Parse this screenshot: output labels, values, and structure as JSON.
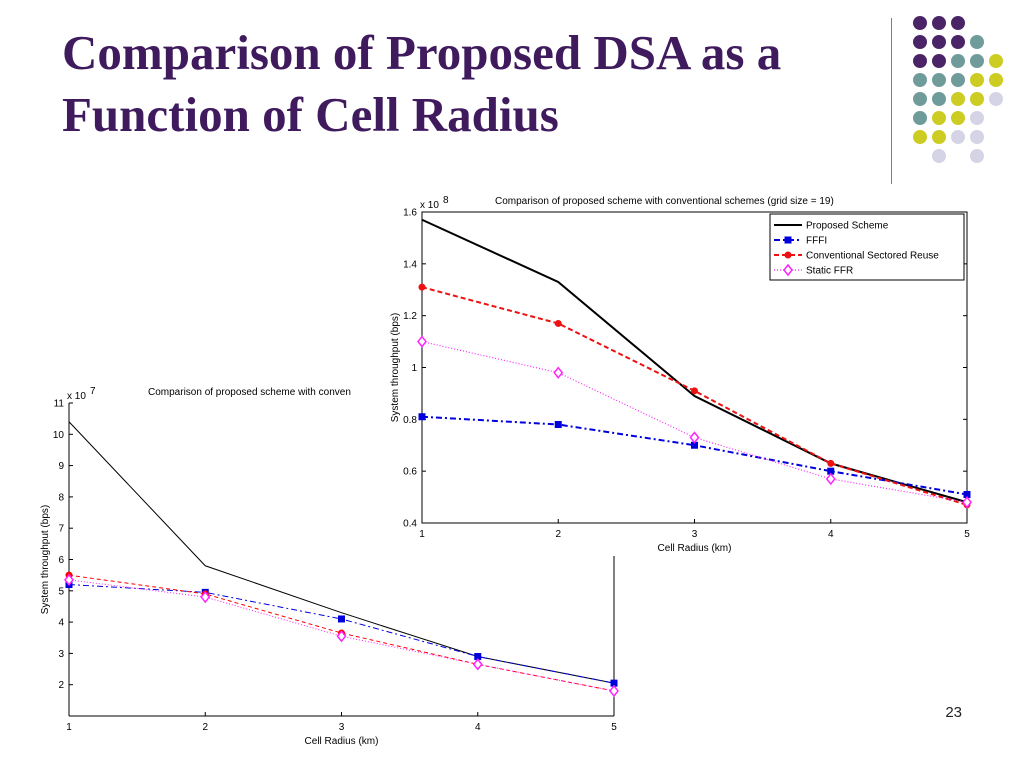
{
  "slide": {
    "title": "Comparison of Proposed DSA as a Function of Cell Radius",
    "page_number": "23"
  },
  "decoration": {
    "dot_colors": {
      "purple": "#4a2466",
      "teal": "#6f9c9a",
      "yellow": "#cccc22",
      "lavender": "#d4d4e6"
    },
    "rule_color": "#7f7f7f"
  },
  "chart_data": [
    {
      "type": "line",
      "title": "Comparison of proposed scheme with conven",
      "xlabel": "Cell Radius (km)",
      "ylabel": "System throughput (bps)",
      "y_exponent_label": "x 10",
      "y_exponent": "7",
      "xlim": [
        1,
        5
      ],
      "ylim": [
        1,
        11
      ],
      "x_ticks": [
        "1",
        "2",
        "3",
        "4",
        "5"
      ],
      "y_ticks": [
        "2",
        "3",
        "4",
        "5",
        "6",
        "7",
        "8",
        "9",
        "10",
        "11"
      ],
      "y_tick_values": [
        2,
        3,
        4,
        5,
        6,
        7,
        8,
        9,
        10,
        11
      ],
      "legend": "none",
      "grid": false,
      "x": [
        1,
        2,
        3,
        4,
        5
      ],
      "series": [
        {
          "color": "#000000",
          "dash": "",
          "marker": "none",
          "width": 1,
          "values": [
            10.4,
            5.8,
            4.3,
            2.9,
            2.05
          ]
        },
        {
          "color": "#0000dd",
          "dash": "6 3 2 3",
          "marker": "square",
          "width": 1,
          "values": [
            5.2,
            4.95,
            4.1,
            2.9,
            2.05
          ]
        },
        {
          "color": "#ff0000",
          "dash": "4 3",
          "marker": "circle",
          "width": 1,
          "values": [
            5.5,
            4.9,
            3.65,
            2.65,
            1.8
          ]
        },
        {
          "color": "#ff22ff",
          "dash": "1 2",
          "marker": "diamond",
          "width": 1,
          "values": [
            5.35,
            4.8,
            3.55,
            2.65,
            1.8
          ]
        }
      ]
    },
    {
      "type": "line",
      "title": "Comparison of proposed scheme with conventional schemes (grid size = 19)",
      "xlabel": "Cell Radius (km)",
      "ylabel": "System throughput (bps)",
      "y_exponent_label": "x 10",
      "y_exponent": "8",
      "xlim": [
        1,
        5
      ],
      "ylim": [
        0.4,
        1.6
      ],
      "x_ticks": [
        "1",
        "2",
        "3",
        "4",
        "5"
      ],
      "y_ticks": [
        "0.4",
        "0.6",
        "0.8",
        "1",
        "1.2",
        "1.4",
        "1.6"
      ],
      "y_tick_values": [
        0.4,
        0.6,
        0.8,
        1.0,
        1.2,
        1.4,
        1.6
      ],
      "legend": "top-right",
      "grid": false,
      "x": [
        1,
        2,
        3,
        4,
        5
      ],
      "series": [
        {
          "name": "Proposed Scheme",
          "color": "#000000",
          "dash": "",
          "marker": "none",
          "width": 2,
          "values": [
            1.57,
            1.33,
            0.89,
            0.63,
            0.48
          ]
        },
        {
          "name": "FFFI",
          "color": "#0000dd",
          "dash": "6 3 2 3",
          "marker": "square",
          "width": 2,
          "values": [
            0.81,
            0.78,
            0.7,
            0.6,
            0.51
          ]
        },
        {
          "name": "Conventional Sectored Reuse",
          "color": "#ee1111",
          "dash": "5 3",
          "marker": "circle",
          "width": 2,
          "values": [
            1.31,
            1.17,
            0.91,
            0.63,
            0.47
          ]
        },
        {
          "name": "Static FFR",
          "color": "#ff22ff",
          "dash": "1 2",
          "marker": "diamond",
          "width": 1.2,
          "values": [
            1.1,
            0.98,
            0.73,
            0.57,
            0.48
          ]
        }
      ]
    }
  ]
}
